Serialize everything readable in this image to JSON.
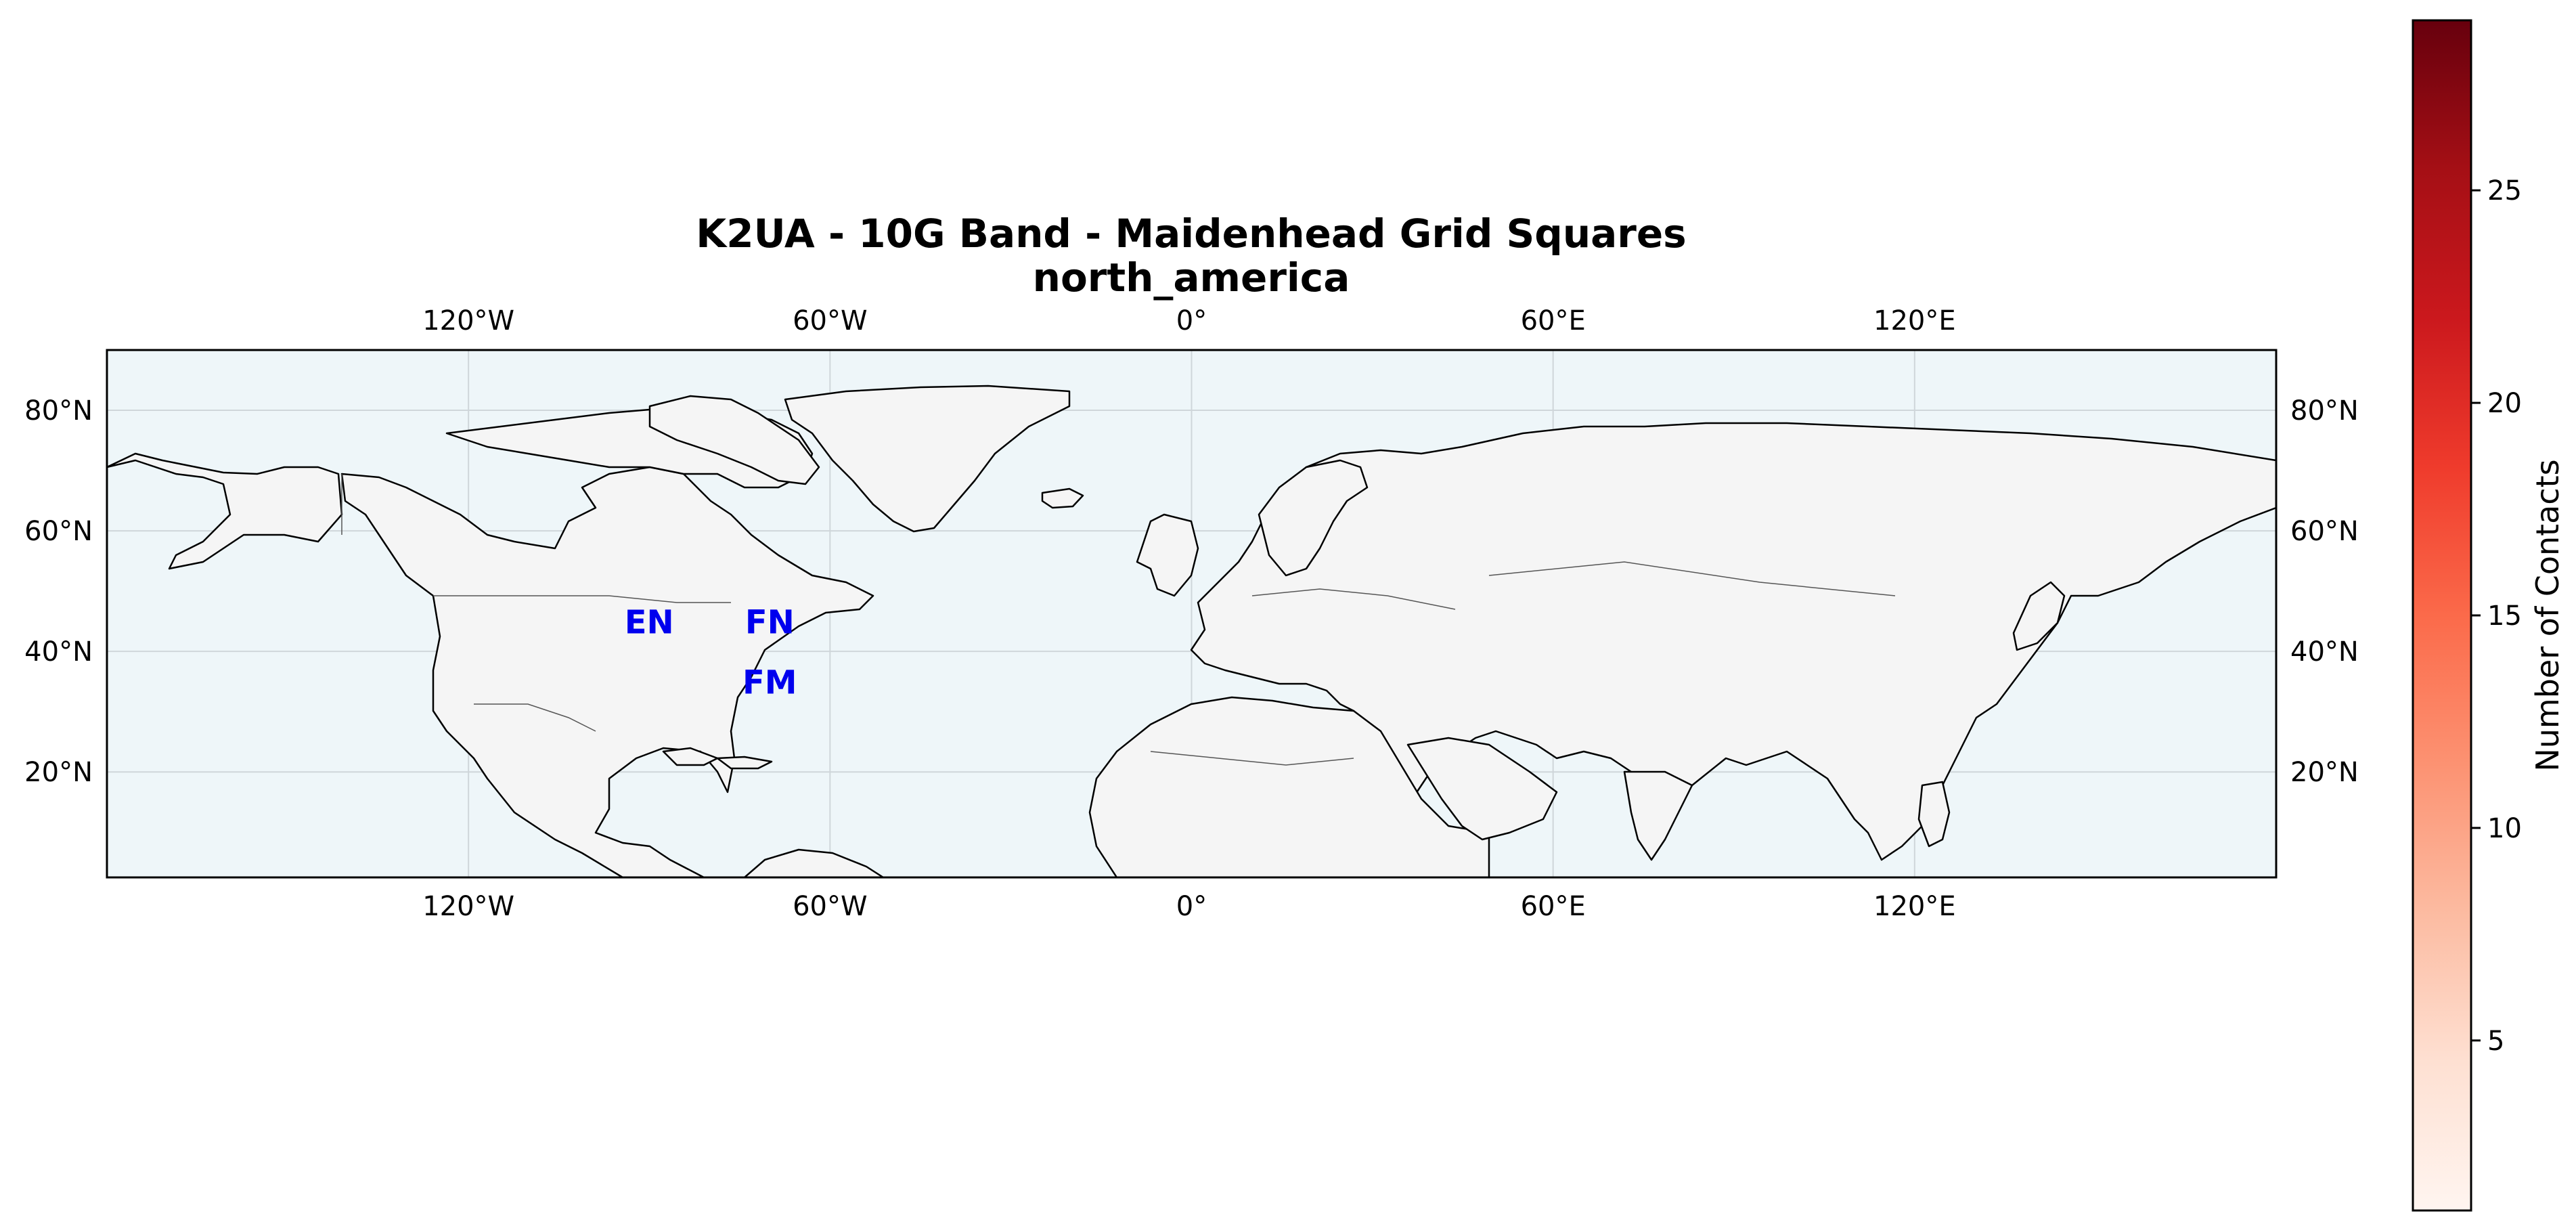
{
  "title": {
    "line1": "K2UA - 10G Band - Maidenhead Grid Squares",
    "line2": "north_america"
  },
  "map": {
    "extent": {
      "lon": [
        -180,
        180
      ],
      "lat": [
        2.5,
        90
      ]
    },
    "gridlines": true,
    "ocean_color": "#eef6f9",
    "land_color": "#f5f5f5",
    "coast_color": "#000000",
    "border_color": "#555555",
    "grid_color": "#cfd6da",
    "lon_ticks": [
      {
        "value": -120,
        "label": "120°W"
      },
      {
        "value": -60,
        "label": "60°W"
      },
      {
        "value": 0,
        "label": "0°"
      },
      {
        "value": 60,
        "label": "60°E"
      },
      {
        "value": 120,
        "label": "120°E"
      }
    ],
    "lat_ticks": [
      {
        "value": 20,
        "label": "20°N"
      },
      {
        "value": 40,
        "label": "40°N"
      },
      {
        "value": 60,
        "label": "60°N"
      },
      {
        "value": 80,
        "label": "80°N"
      }
    ]
  },
  "grid_labels": {
    "color": "#0000ee",
    "items": [
      {
        "label": "EN",
        "lon": -90,
        "lat": 45
      },
      {
        "label": "FN",
        "lon": -70,
        "lat": 45
      },
      {
        "label": "FM",
        "lon": -70,
        "lat": 35
      }
    ]
  },
  "colorbar": {
    "label": "Number of Contacts",
    "colormap": "Reds",
    "range": [
      1,
      29
    ],
    "stops": [
      "#fff5f0",
      "#fee0d2",
      "#fcbba1",
      "#fc9272",
      "#fb6a4a",
      "#ef3b2c",
      "#cb181d",
      "#a50f15",
      "#67000d"
    ],
    "ticks": [
      {
        "value": 5,
        "label": "5"
      },
      {
        "value": 10,
        "label": "10"
      },
      {
        "value": 15,
        "label": "15"
      },
      {
        "value": 20,
        "label": "20"
      },
      {
        "value": 25,
        "label": "25"
      }
    ]
  }
}
